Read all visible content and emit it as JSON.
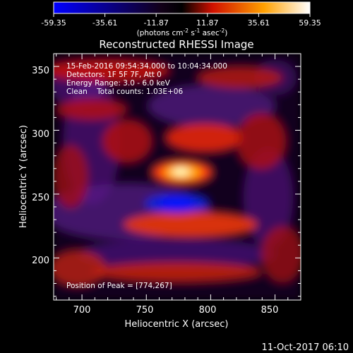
{
  "chart_data": {
    "type": "heatmap",
    "title": "Reconstructed RHESSI Image",
    "xlabel": "Heliocentric X (arcsec)",
    "ylabel": "Heliocentric Y (arcsec)",
    "xlim": [
      678,
      870
    ],
    "ylim": [
      167,
      360
    ],
    "x_ticks": [
      700,
      750,
      800,
      850
    ],
    "y_ticks": [
      200,
      250,
      300,
      350
    ],
    "colorbar": {
      "min": -59.35,
      "max": 59.35,
      "ticks": [
        "-59.35",
        "-35.61",
        "-11.87",
        "11.87",
        "35.61",
        "59.35"
      ],
      "units_prefix": "(photons cm",
      "units_exp1": "-2",
      "units_mid": " s",
      "units_exp2": "-1",
      "units_mid2": " asec",
      "units_exp3": "-2",
      "units_suffix": ")",
      "colors": [
        "#0000ff",
        "#000000",
        "#ff0000",
        "#ffff00",
        "#ffffff"
      ]
    },
    "annotations": [
      "15-Feb-2016 09:54:34.000 to 10:04:34.000",
      "Detectors: 1F 5F 7F, Att 0",
      "Energy Range: 3.0 - 6.0 keV",
      "Clean    Total counts: 1.03E+06"
    ],
    "peak_label": "Position of Peak = [774,267]",
    "peak": {
      "x": 774,
      "y": 267
    }
  },
  "timestamp": "11-Oct-2017 06:10"
}
